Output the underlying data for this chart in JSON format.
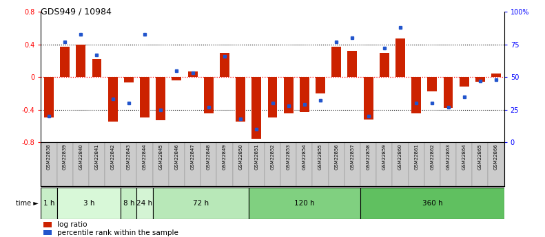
{
  "title": "GDS949 / 10984",
  "samples": [
    "GSM22838",
    "GSM22839",
    "GSM22840",
    "GSM22841",
    "GSM22842",
    "GSM22843",
    "GSM22844",
    "GSM22845",
    "GSM22846",
    "GSM22847",
    "GSM22848",
    "GSM22849",
    "GSM22850",
    "GSM22851",
    "GSM22852",
    "GSM22853",
    "GSM22854",
    "GSM22855",
    "GSM22856",
    "GSM22857",
    "GSM22858",
    "GSM22859",
    "GSM22860",
    "GSM22861",
    "GSM22862",
    "GSM22863",
    "GSM22864",
    "GSM22865",
    "GSM22866"
  ],
  "log_ratio": [
    -0.5,
    0.37,
    0.4,
    0.22,
    -0.55,
    -0.07,
    -0.5,
    -0.53,
    -0.04,
    0.07,
    -0.45,
    0.3,
    -0.55,
    -0.76,
    -0.5,
    -0.45,
    -0.43,
    -0.2,
    0.37,
    0.32,
    -0.52,
    0.3,
    0.47,
    -0.45,
    -0.18,
    -0.38,
    -0.12,
    -0.06,
    0.04
  ],
  "percentile_rank": [
    20,
    77,
    83,
    67,
    33,
    30,
    83,
    25,
    55,
    53,
    27,
    66,
    18,
    10,
    30,
    28,
    29,
    32,
    77,
    80,
    20,
    72,
    88,
    30,
    30,
    27,
    35,
    47,
    48
  ],
  "time_groups": [
    {
      "label": "1 h",
      "start": 0,
      "end": 1,
      "color": "#c8eec8"
    },
    {
      "label": "3 h",
      "start": 1,
      "end": 5,
      "color": "#d8f8d8"
    },
    {
      "label": "8 h",
      "start": 5,
      "end": 6,
      "color": "#c4eec4"
    },
    {
      "label": "24 h",
      "start": 6,
      "end": 7,
      "color": "#d4f4d4"
    },
    {
      "label": "72 h",
      "start": 7,
      "end": 13,
      "color": "#b8e8b8"
    },
    {
      "label": "120 h",
      "start": 13,
      "end": 20,
      "color": "#80d080"
    },
    {
      "label": "360 h",
      "start": 20,
      "end": 29,
      "color": "#60c060"
    }
  ],
  "bar_color": "#cc2200",
  "dot_color": "#2255cc",
  "ylim_left": [
    -0.8,
    0.8
  ],
  "ylim_right": [
    0,
    100
  ],
  "yticks_left": [
    -0.8,
    -0.4,
    0.0,
    0.4,
    0.8
  ],
  "ytick_labels_left": [
    "-0.8",
    "-0.4",
    "0",
    "0.4",
    "0.8"
  ],
  "yticks_right": [
    0,
    25,
    50,
    75,
    100
  ],
  "ytick_labels_right": [
    "0",
    "25",
    "50",
    "75",
    "100%"
  ]
}
